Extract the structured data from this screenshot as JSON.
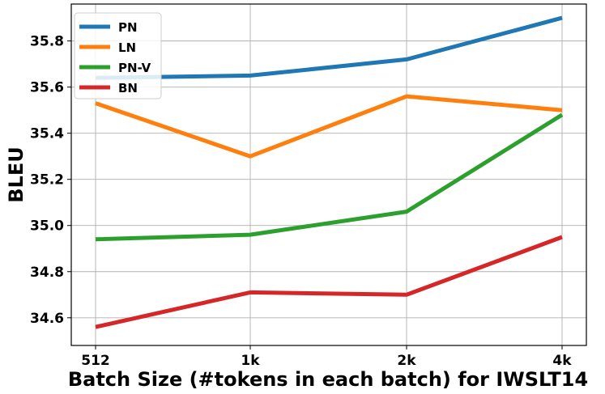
{
  "chart_data": {
    "type": "line",
    "categories": [
      "512",
      "1k",
      "2k",
      "4k"
    ],
    "series": [
      {
        "name": "PN",
        "color": "#1f77b4",
        "values": [
          35.64,
          35.65,
          35.72,
          35.9
        ]
      },
      {
        "name": "LN",
        "color": "#ff7f0e",
        "values": [
          35.53,
          35.3,
          35.56,
          35.5
        ]
      },
      {
        "name": "PN-V",
        "color": "#2ca02c",
        "values": [
          34.94,
          34.96,
          35.06,
          35.48
        ]
      },
      {
        "name": "BN",
        "color": "#d62728",
        "values": [
          34.56,
          34.71,
          34.7,
          34.95
        ]
      }
    ],
    "xlabel": "Batch Size (#tokens in each batch) for IWSLT14",
    "ylabel": "BLEU",
    "ylim": [
      34.48,
      35.96
    ],
    "yticks": [
      "34.6",
      "34.8",
      "35.0",
      "35.2",
      "35.4",
      "35.6",
      "35.8"
    ],
    "grid": true,
    "legend_position": "top-left"
  }
}
